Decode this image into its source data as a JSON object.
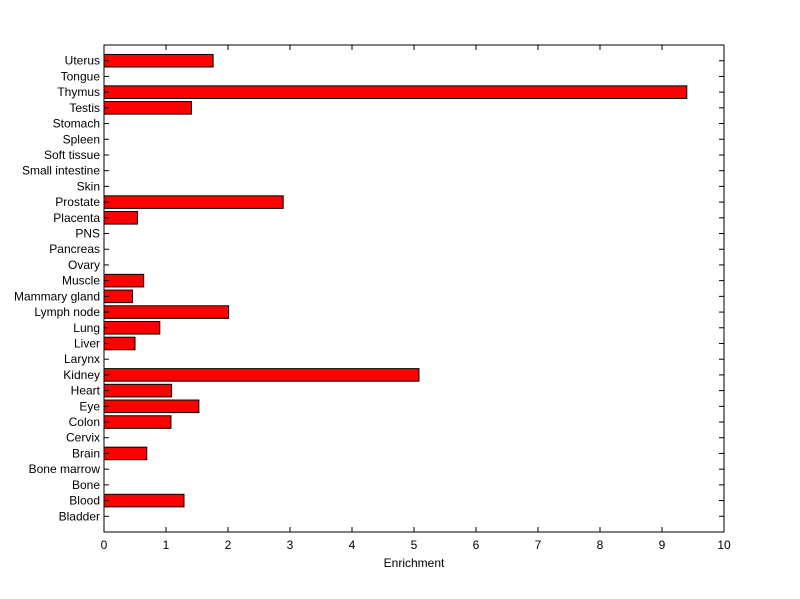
{
  "chart_data": {
    "type": "bar",
    "orientation": "horizontal",
    "title": "",
    "xlabel": "Enrichment",
    "ylabel": "",
    "xlim": [
      0,
      10
    ],
    "xticks": [
      0,
      1,
      2,
      3,
      4,
      5,
      6,
      7,
      8,
      9,
      10
    ],
    "grid": false,
    "legend": "none",
    "bar_color": "#ff0000",
    "bar_edge_color": "#000000",
    "categories": [
      "Uterus",
      "Tongue",
      "Thymus",
      "Testis",
      "Stomach",
      "Spleen",
      "Soft tissue",
      "Small intestine",
      "Skin",
      "Prostate",
      "Placenta",
      "PNS",
      "Pancreas",
      "Ovary",
      "Muscle",
      "Mammary gland",
      "Lymph node",
      "Lung",
      "Liver",
      "Larynx",
      "Kidney",
      "Heart",
      "Eye",
      "Colon",
      "Cervix",
      "Brain",
      "Bone marrow",
      "Bone",
      "Blood",
      "Bladder"
    ],
    "values": [
      1.76,
      0,
      9.4,
      1.41,
      0,
      0,
      0,
      0,
      0,
      2.89,
      0.54,
      0,
      0,
      0,
      0.64,
      0.46,
      2.01,
      0.9,
      0.5,
      0,
      5.08,
      1.09,
      1.53,
      1.08,
      0,
      0.69,
      0,
      0,
      1.29,
      0
    ]
  }
}
